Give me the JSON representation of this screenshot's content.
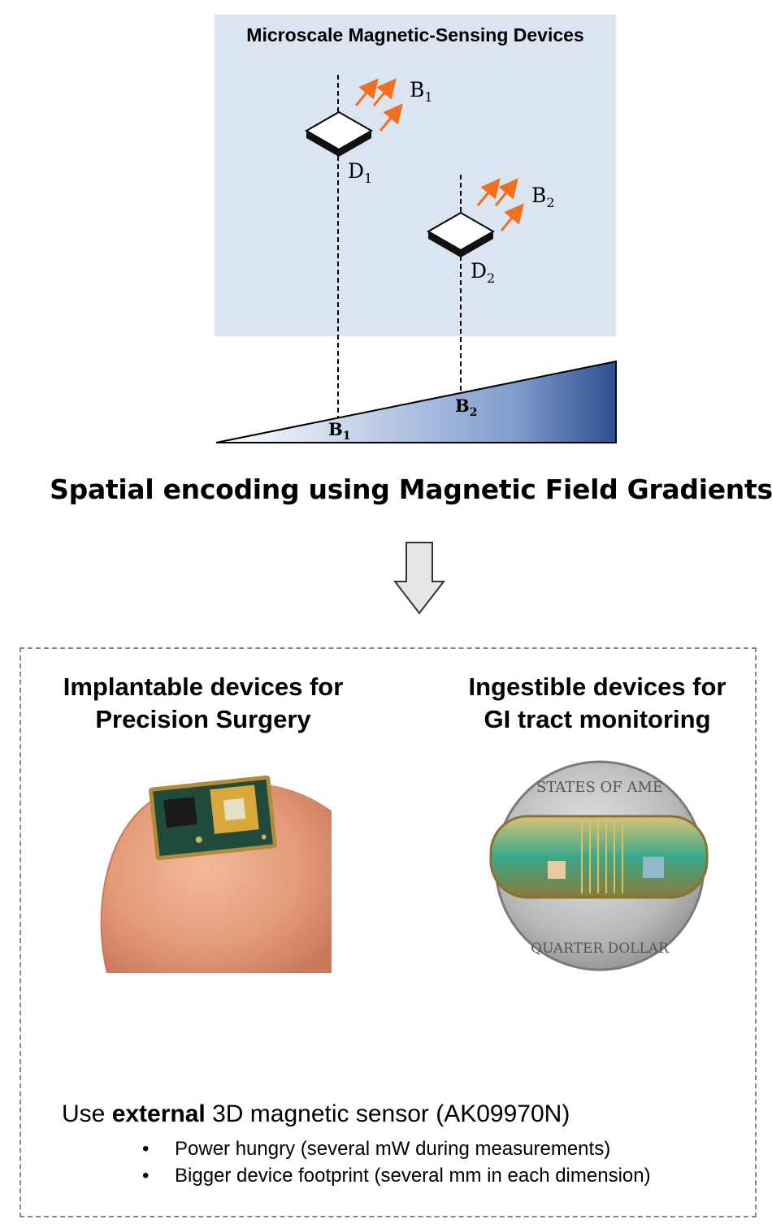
{
  "panel": {
    "title": "Microscale Magnetic-Sensing Devices",
    "devices": [
      {
        "label": "D",
        "sub": "1",
        "field_label": "B",
        "field_sub": "1"
      },
      {
        "label": "D",
        "sub": "2",
        "field_label": "B",
        "field_sub": "2"
      }
    ]
  },
  "gradient": {
    "markers": [
      {
        "label": "B",
        "sub": "1"
      },
      {
        "label": "B",
        "sub": "2"
      }
    ]
  },
  "caption": "Spatial encoding using Magnetic Field Gradients",
  "applications": {
    "left": {
      "title_line1": "Implantable devices for",
      "title_line2": "Precision Surgery"
    },
    "right": {
      "title_line1": "Ingestible devices for",
      "title_line2": "GI tract monitoring"
    },
    "coin_text_top": "STATES OF AME",
    "coin_text_bottom": "QUARTER DOLLAR"
  },
  "sensor": {
    "prefix": "Use ",
    "emphasis": "external",
    "suffix": " 3D magnetic sensor (AK09970N)",
    "bullets": [
      "Power hungry (several mW during measurements)",
      "Bigger device footprint (several mm in each dimension)"
    ]
  },
  "colors": {
    "panel_bg": "#dbe4f1",
    "arrow": "#f07020",
    "gradient_dark": "#2f4f8f",
    "flow_arrow_fill": "#e6e6e6"
  }
}
